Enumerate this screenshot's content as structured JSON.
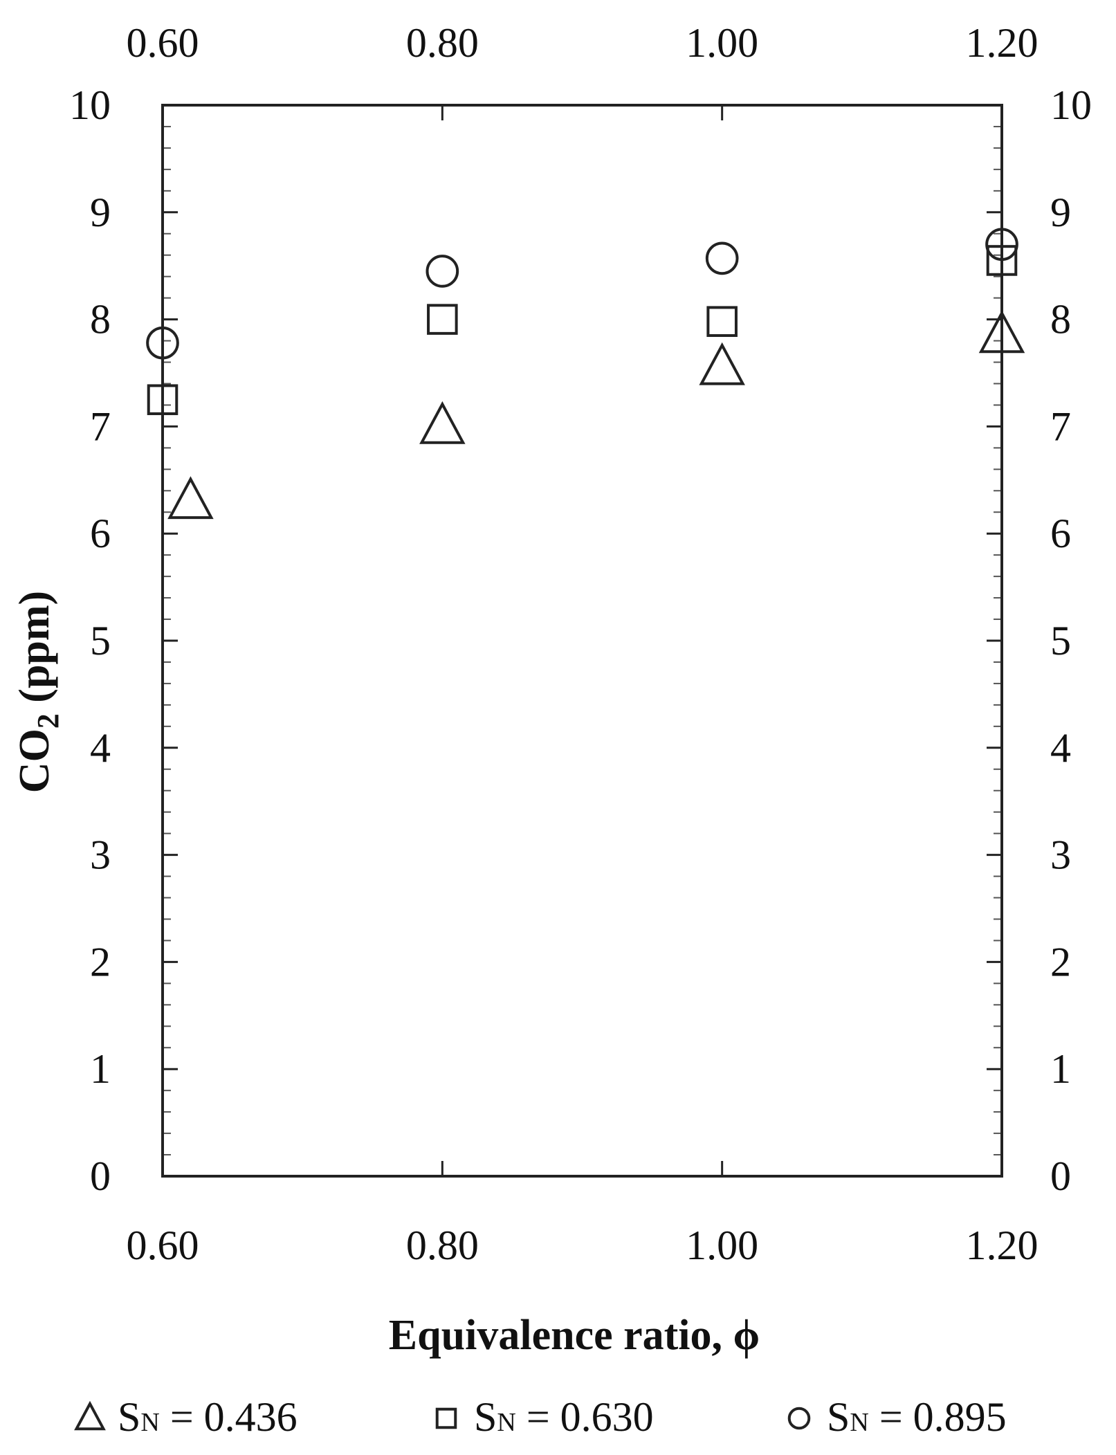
{
  "chart_data": {
    "type": "scatter",
    "xlabel": "Equivalence ratio, ϕ",
    "ylabel_main": "CO",
    "ylabel_sub": "2",
    "ylabel_suffix": " (ppm)",
    "xlim": [
      0.6,
      1.2
    ],
    "ylim": [
      0,
      10
    ],
    "x_ticks": [
      0.6,
      0.8,
      1.0,
      1.2
    ],
    "x_tick_labels": [
      "0.60",
      "0.80",
      "1.00",
      "1.20"
    ],
    "y_ticks": [
      0,
      1,
      2,
      3,
      4,
      5,
      6,
      7,
      8,
      9,
      10
    ],
    "y_tick_labels": [
      "0",
      "1",
      "2",
      "3",
      "4",
      "5",
      "6",
      "7",
      "8",
      "9",
      "10"
    ],
    "mirror_axes": true,
    "grid": false,
    "legend_position": "bottom",
    "series": [
      {
        "marker": "triangle",
        "legend": {
          "symbol": "S",
          "sub": "N",
          "rest": " = 0.436"
        },
        "x": [
          0.62,
          0.8,
          1.0,
          1.2
        ],
        "y": [
          6.3,
          7.0,
          7.55,
          7.85
        ]
      },
      {
        "marker": "square",
        "legend": {
          "symbol": "S",
          "sub": "N",
          "rest": " = 0.630"
        },
        "x": [
          0.6,
          0.8,
          1.0,
          1.2
        ],
        "y": [
          7.25,
          8.0,
          7.98,
          8.55
        ]
      },
      {
        "marker": "circle",
        "legend": {
          "symbol": "S",
          "sub": "N",
          "rest": " = 0.895"
        },
        "x": [
          0.6,
          0.8,
          1.0,
          1.2
        ],
        "y": [
          7.78,
          8.45,
          8.57,
          8.7
        ]
      }
    ]
  }
}
